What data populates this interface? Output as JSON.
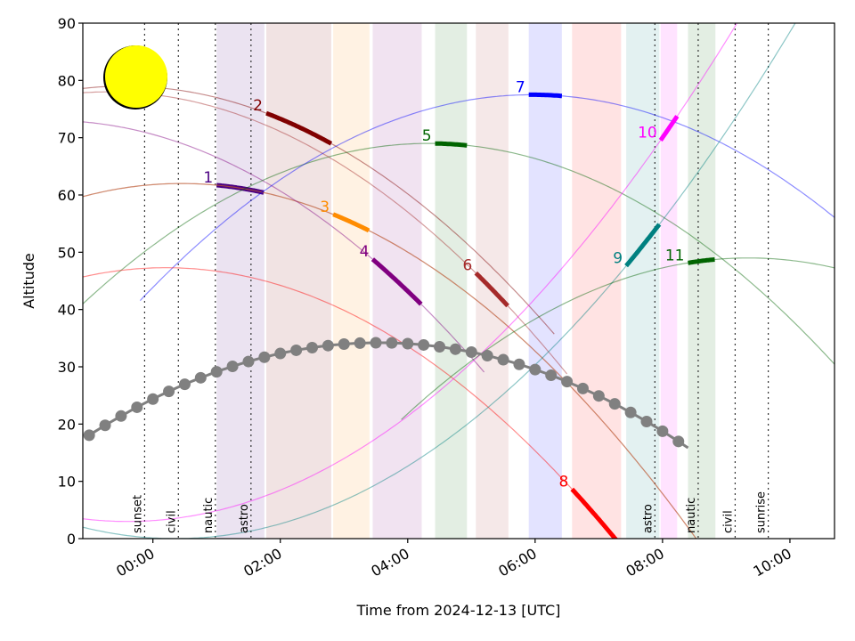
{
  "chart_data": {
    "type": "line",
    "xlabel": "Time from 2024-12-13 [UTC]",
    "ylabel": "Altitude",
    "x_range_hours": [
      -1.1,
      10.7
    ],
    "xlim": [
      "2024-12-12 22:54",
      "2024-12-13 10:42"
    ],
    "ylim": [
      0,
      90
    ],
    "y_ticks": [
      0,
      10,
      20,
      30,
      40,
      50,
      60,
      70,
      80,
      90
    ],
    "x_ticks": [
      {
        "hour": 0,
        "label": "00:00"
      },
      {
        "hour": 2,
        "label": "02:00"
      },
      {
        "hour": 4,
        "label": "04:00"
      },
      {
        "hour": 6,
        "label": "06:00"
      },
      {
        "hour": 8,
        "label": "08:00"
      },
      {
        "hour": 10,
        "label": "10:00"
      }
    ],
    "grid": false,
    "moon": {
      "color": "#ffff00",
      "outline": "#000000"
    },
    "twilight_markers": [
      {
        "hour": -0.13,
        "label": "sunset"
      },
      {
        "hour": 0.4,
        "label": "civil"
      },
      {
        "hour": 0.98,
        "label": "nautic"
      },
      {
        "hour": 1.54,
        "label": "astro"
      },
      {
        "hour": 7.88,
        "label": "astro"
      },
      {
        "hour": 8.56,
        "label": "nautic"
      },
      {
        "hour": 9.14,
        "label": "civil"
      },
      {
        "hour": 9.66,
        "label": "sunrise"
      }
    ],
    "bands": [
      {
        "start": 1.0,
        "end": 1.75,
        "color": "#4b0082"
      },
      {
        "start": 1.78,
        "end": 2.8,
        "color": "#800000"
      },
      {
        "start": 2.83,
        "end": 3.4,
        "color": "#ff8c00"
      },
      {
        "start": 3.45,
        "end": 4.22,
        "color": "#800080"
      },
      {
        "start": 4.43,
        "end": 4.93,
        "color": "#006400"
      },
      {
        "start": 5.07,
        "end": 5.58,
        "color": "#a52a2a"
      },
      {
        "start": 5.9,
        "end": 6.42,
        "color": "#0000ff"
      },
      {
        "start": 6.58,
        "end": 7.35,
        "color": "#ff0000"
      },
      {
        "start": 7.43,
        "end": 7.95,
        "color": "#008080"
      },
      {
        "start": 7.97,
        "end": 8.23,
        "color": "#ff00ff"
      },
      {
        "start": 8.4,
        "end": 8.83,
        "color": "#006400"
      }
    ],
    "series": [
      {
        "name": "1",
        "color": "#4b0082",
        "peak_hour": 0.45,
        "peak_alt": 62,
        "curve_range": [
          -1.2,
          10.8
        ],
        "highlight": [
          1.0,
          1.75
        ]
      },
      {
        "name": "2",
        "color": "#800000",
        "peak_hour": -0.45,
        "peak_alt": 79,
        "curve_range": [
          -1.2,
          6.3
        ],
        "highlight": [
          1.78,
          2.8
        ]
      },
      {
        "name": "3",
        "color": "#ff8c00",
        "peak_hour": 0.45,
        "peak_alt": 62,
        "curve_range": [
          -1.2,
          10.8
        ],
        "highlight": [
          2.83,
          3.4
        ]
      },
      {
        "name": "4",
        "color": "#800080",
        "peak_hour": -1.6,
        "peak_alt": 73,
        "curve_range": [
          -1.2,
          5.2
        ],
        "highlight": [
          3.45,
          4.22
        ]
      },
      {
        "name": "5",
        "color": "#006400",
        "peak_hour": 4.33,
        "peak_alt": 69,
        "curve_range": [
          -1.2,
          10.8
        ],
        "highlight": [
          4.43,
          4.93
        ]
      },
      {
        "name": "6",
        "color": "#a52a2a",
        "peak_hour": -0.7,
        "peak_alt": 78,
        "curve_range": [
          -1.2,
          6.5
        ],
        "highlight": [
          5.07,
          5.58
        ]
      },
      {
        "name": "7",
        "color": "#0000ff",
        "peak_hour": 5.95,
        "peak_alt": 77.5,
        "curve_range": [
          -0.2,
          10.8
        ],
        "highlight": [
          5.9,
          6.42
        ]
      },
      {
        "name": "8",
        "color": "#ff0000",
        "peak_hour": 0.2,
        "peak_alt": 47.3,
        "curve_range": [
          -1.2,
          10.8
        ],
        "highlight": [
          6.58,
          7.35
        ]
      },
      {
        "name": "9",
        "color": "#008080",
        "peak_hour": 0.35,
        "peak_alt": 0.0,
        "curve_range": [
          -1.2,
          10.8
        ],
        "highlight": [
          7.43,
          7.95
        ]
      },
      {
        "name": "10",
        "color": "#ff00ff",
        "peak_hour": -0.4,
        "peak_alt": 3.0,
        "curve_range": [
          -1.2,
          10.8
        ],
        "highlight": [
          7.97,
          8.23
        ]
      },
      {
        "name": "11",
        "color": "#006400",
        "peak_hour": 9.35,
        "peak_alt": 49.0,
        "curve_range": [
          3.9,
          10.8
        ],
        "highlight": [
          8.4,
          8.83
        ]
      }
    ],
    "moon_track": {
      "color": "#808080",
      "peak_hour": 3.55,
      "peak_alt": 34.2,
      "start_hour": -1.0,
      "end_hour": 8.4,
      "step_hours": 0.25
    }
  }
}
